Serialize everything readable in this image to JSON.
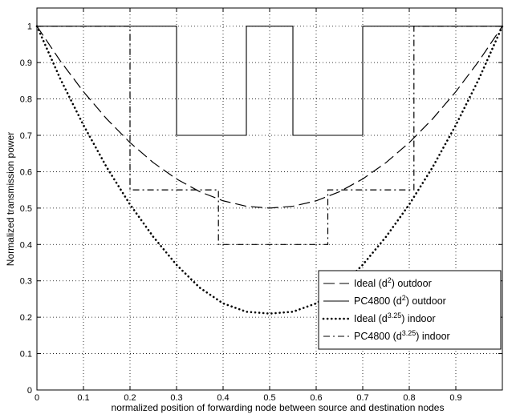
{
  "chart_data": {
    "type": "line",
    "title": "",
    "xlabel": "normalized position of forwarding node between source and destination nodes",
    "ylabel": "Normalized transmission power",
    "xlim": [
      0,
      1
    ],
    "ylim": [
      0,
      1.05
    ],
    "grid": true,
    "x_ticks": [
      0,
      0.1,
      0.2,
      0.3,
      0.4,
      0.5,
      0.6,
      0.7,
      0.8,
      0.9
    ],
    "y_ticks": [
      0,
      0.1,
      0.2,
      0.3,
      0.4,
      0.5,
      0.6,
      0.7,
      0.8,
      0.9,
      1
    ],
    "legend_position": "lower-right",
    "series": [
      {
        "name": "Ideal (d²) outdoor",
        "legend_base": "Ideal (d",
        "legend_sup": "2",
        "legend_tail": ") outdoor",
        "style": "dashed",
        "color": "#000000",
        "x": [
          0,
          0.05,
          0.1,
          0.15,
          0.2,
          0.25,
          0.3,
          0.35,
          0.4,
          0.45,
          0.5,
          0.55,
          0.6,
          0.65,
          0.7,
          0.75,
          0.8,
          0.85,
          0.9,
          0.95,
          1
        ],
        "y": [
          1,
          0.905,
          0.82,
          0.745,
          0.68,
          0.625,
          0.58,
          0.545,
          0.52,
          0.505,
          0.5,
          0.505,
          0.52,
          0.545,
          0.58,
          0.625,
          0.68,
          0.745,
          0.82,
          0.905,
          1
        ]
      },
      {
        "name": "PC4800 (d²) outdoor",
        "legend_base": "PC4800 (d",
        "legend_sup": "2",
        "legend_tail": ") outdoor",
        "style": "solid",
        "color": "#000000",
        "x": [
          0,
          0.3,
          0.3,
          0.45,
          0.45,
          0.55,
          0.55,
          0.7,
          0.7,
          1
        ],
        "y": [
          1,
          1,
          0.7,
          0.7,
          1,
          1,
          0.7,
          0.7,
          1,
          1
        ]
      },
      {
        "name": "Ideal (d^3.25) indoor",
        "legend_base": "Ideal (d",
        "legend_sup": "3.25",
        "legend_tail": ") indoor",
        "style": "dotted",
        "color": "#000000",
        "x": [
          0,
          0.05,
          0.1,
          0.15,
          0.2,
          0.25,
          0.3,
          0.35,
          0.4,
          0.45,
          0.5,
          0.55,
          0.6,
          0.65,
          0.7,
          0.75,
          0.8,
          0.85,
          0.9,
          0.95,
          1
        ],
        "y": [
          1,
          0.856,
          0.728,
          0.612,
          0.51,
          0.421,
          0.344,
          0.281,
          0.238,
          0.215,
          0.21,
          0.215,
          0.238,
          0.281,
          0.344,
          0.421,
          0.51,
          0.612,
          0.728,
          0.856,
          1
        ]
      },
      {
        "name": "PC4800 (d^3.25) indoor",
        "legend_base": "PC4800 (d",
        "legend_sup": "3.25",
        "legend_tail": ") indoor",
        "style": "dashdot",
        "color": "#000000",
        "x": [
          0,
          0.2,
          0.2,
          0.39,
          0.39,
          0.625,
          0.625,
          0.81,
          0.81,
          1
        ],
        "y": [
          1,
          1,
          0.55,
          0.55,
          0.4,
          0.4,
          0.55,
          0.55,
          1,
          1
        ]
      }
    ]
  }
}
